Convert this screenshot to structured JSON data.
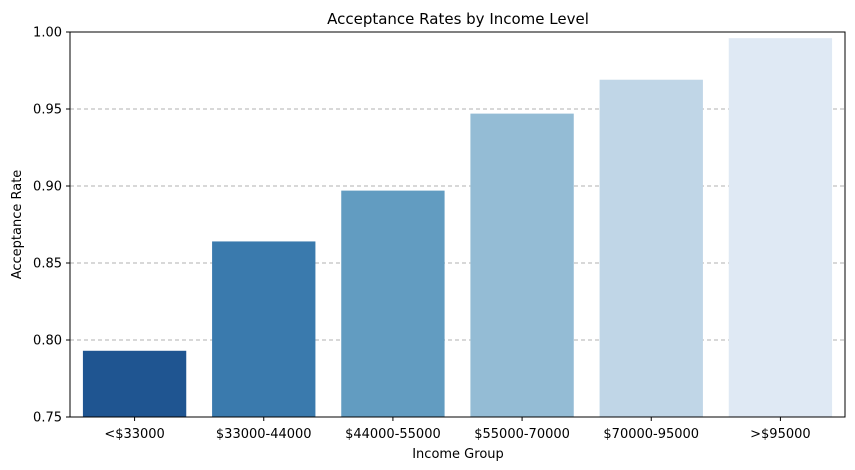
{
  "chart_data": {
    "type": "bar",
    "title": "Acceptance Rates by Income Level",
    "xlabel": "Income Group",
    "ylabel": "Acceptance Rate",
    "categories": [
      "<$33000",
      "$33000-44000",
      "$44000-55000",
      "$55000-70000",
      "$70000-95000",
      ">$95000"
    ],
    "values": [
      0.793,
      0.864,
      0.897,
      0.947,
      0.969,
      0.996
    ],
    "ylim": [
      0.75,
      1.0
    ],
    "yticks": [
      "0.75",
      "0.80",
      "0.85",
      "0.90",
      "0.95",
      "1.00"
    ],
    "ytick_values": [
      0.75,
      0.8,
      0.85,
      0.9,
      0.95,
      1.0
    ],
    "grid": true,
    "colors": [
      "#1f5591",
      "#3a7aad",
      "#629cc1",
      "#94bcd5",
      "#c0d6e7",
      "#dfe9f4"
    ]
  }
}
